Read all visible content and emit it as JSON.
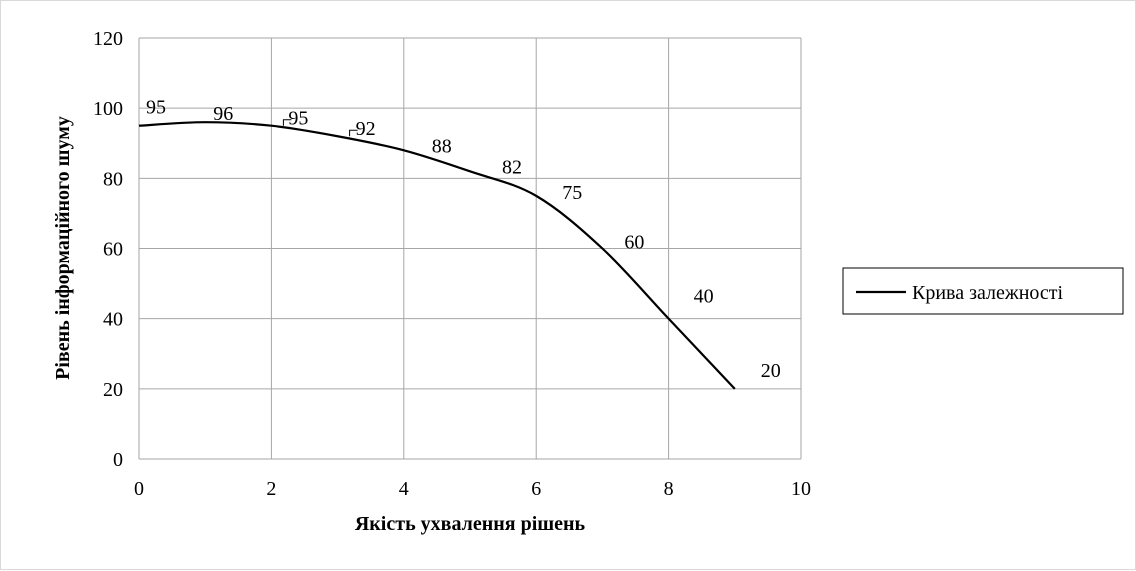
{
  "chart_data": {
    "type": "line",
    "title": "",
    "xlabel": "Якість ухвалення рішень",
    "ylabel": "Рівень інформаційного шуму",
    "xlim": [
      0,
      10
    ],
    "ylim": [
      0,
      120
    ],
    "xticks": [
      0,
      2,
      4,
      6,
      8,
      10
    ],
    "yticks": [
      0,
      20,
      40,
      60,
      80,
      100,
      120
    ],
    "grid": true,
    "smooth": true,
    "legend_position": "right",
    "series": [
      {
        "name": "Крива залежності",
        "color": "#000000",
        "x": [
          0,
          1,
          2,
          3,
          4,
          5,
          6,
          7,
          8,
          9
        ],
        "y": [
          95,
          96,
          95,
          92,
          88,
          82,
          75,
          60,
          40,
          20
        ],
        "labels": [
          "95",
          "96",
          "95",
          "92",
          "88",
          "82",
          "75",
          "60",
          "40",
          "20"
        ]
      }
    ]
  }
}
